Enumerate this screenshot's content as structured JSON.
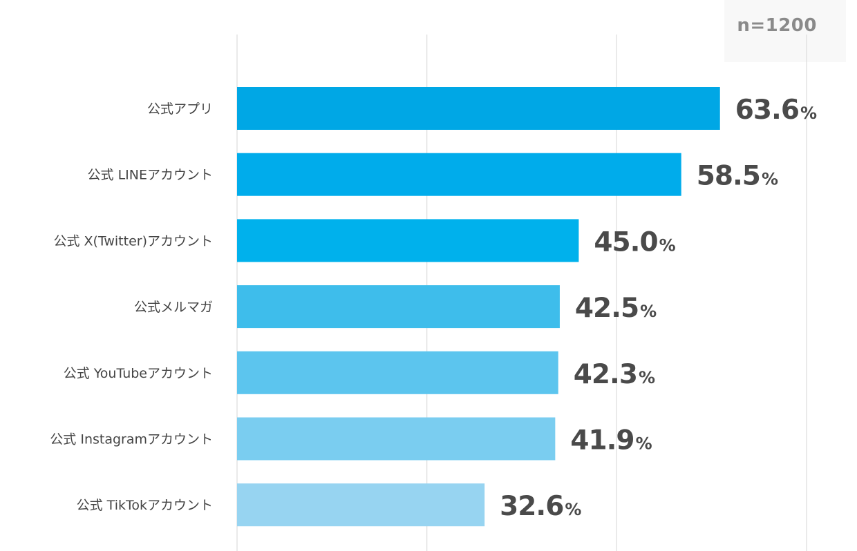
{
  "sample_size": "n=1200",
  "value_suffix": "%",
  "colors": {
    "grid": "#dcdcdc",
    "label_text": "#444444",
    "value_text": "#4a4a4a",
    "bars": [
      "#00a7e5",
      "#00aceb",
      "#00b1ec",
      "#3ebdeb",
      "#5cc5ee",
      "#7acdf0",
      "#97d4f1"
    ]
  },
  "chart_data": {
    "type": "bar",
    "orientation": "horizontal",
    "categories": [
      "公式アプリ",
      "公式 LINEアカウント",
      "公式 X(Twitter)アカウント",
      "公式メルマガ",
      "公式 YouTubeアカウント",
      "公式 Instagramアカウント",
      "公式 TikTokアカウント"
    ],
    "values": [
      63.6,
      58.5,
      45.0,
      42.5,
      42.3,
      41.9,
      32.6
    ],
    "value_labels": [
      "63.6",
      "58.5",
      "45.0",
      "42.5",
      "42.3",
      "41.9",
      "32.6"
    ],
    "xlim": [
      0,
      75
    ],
    "gridlines": [
      0,
      25,
      50,
      75
    ],
    "grid": true,
    "title": "",
    "xlabel": "",
    "ylabel": ""
  }
}
